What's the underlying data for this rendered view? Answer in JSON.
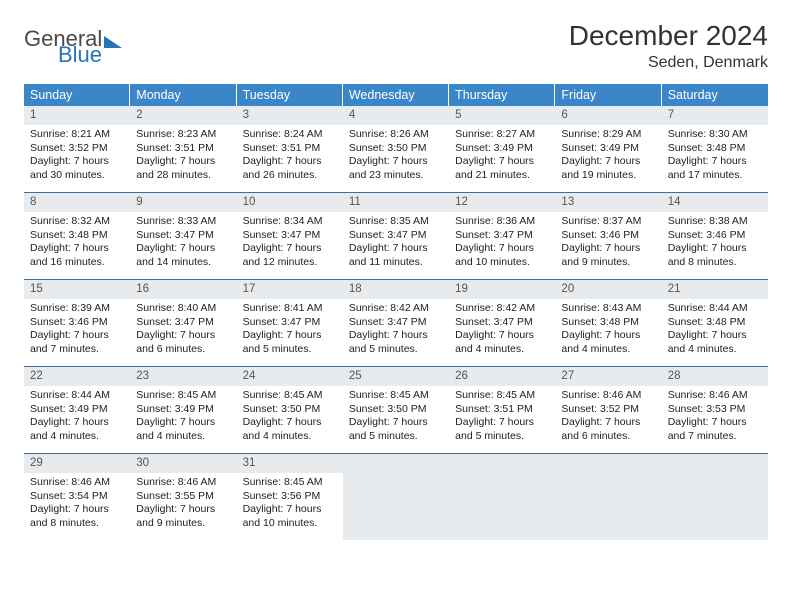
{
  "logo": {
    "general": "General",
    "blue": "Blue"
  },
  "title": "December 2024",
  "subtitle": "Seden, Denmark",
  "colors": {
    "header_bg": "#3a86c8",
    "header_text": "#ffffff",
    "daynum_bg": "#e8ebed",
    "week_border": "#3a6fa0",
    "logo_blue": "#2775b8"
  },
  "day_headers": [
    "Sunday",
    "Monday",
    "Tuesday",
    "Wednesday",
    "Thursday",
    "Friday",
    "Saturday"
  ],
  "weeks": [
    [
      {
        "n": "1",
        "sr": "Sunrise: 8:21 AM",
        "ss": "Sunset: 3:52 PM",
        "dl1": "Daylight: 7 hours",
        "dl2": "and 30 minutes."
      },
      {
        "n": "2",
        "sr": "Sunrise: 8:23 AM",
        "ss": "Sunset: 3:51 PM",
        "dl1": "Daylight: 7 hours",
        "dl2": "and 28 minutes."
      },
      {
        "n": "3",
        "sr": "Sunrise: 8:24 AM",
        "ss": "Sunset: 3:51 PM",
        "dl1": "Daylight: 7 hours",
        "dl2": "and 26 minutes."
      },
      {
        "n": "4",
        "sr": "Sunrise: 8:26 AM",
        "ss": "Sunset: 3:50 PM",
        "dl1": "Daylight: 7 hours",
        "dl2": "and 23 minutes."
      },
      {
        "n": "5",
        "sr": "Sunrise: 8:27 AM",
        "ss": "Sunset: 3:49 PM",
        "dl1": "Daylight: 7 hours",
        "dl2": "and 21 minutes."
      },
      {
        "n": "6",
        "sr": "Sunrise: 8:29 AM",
        "ss": "Sunset: 3:49 PM",
        "dl1": "Daylight: 7 hours",
        "dl2": "and 19 minutes."
      },
      {
        "n": "7",
        "sr": "Sunrise: 8:30 AM",
        "ss": "Sunset: 3:48 PM",
        "dl1": "Daylight: 7 hours",
        "dl2": "and 17 minutes."
      }
    ],
    [
      {
        "n": "8",
        "sr": "Sunrise: 8:32 AM",
        "ss": "Sunset: 3:48 PM",
        "dl1": "Daylight: 7 hours",
        "dl2": "and 16 minutes."
      },
      {
        "n": "9",
        "sr": "Sunrise: 8:33 AM",
        "ss": "Sunset: 3:47 PM",
        "dl1": "Daylight: 7 hours",
        "dl2": "and 14 minutes."
      },
      {
        "n": "10",
        "sr": "Sunrise: 8:34 AM",
        "ss": "Sunset: 3:47 PM",
        "dl1": "Daylight: 7 hours",
        "dl2": "and 12 minutes."
      },
      {
        "n": "11",
        "sr": "Sunrise: 8:35 AM",
        "ss": "Sunset: 3:47 PM",
        "dl1": "Daylight: 7 hours",
        "dl2": "and 11 minutes."
      },
      {
        "n": "12",
        "sr": "Sunrise: 8:36 AM",
        "ss": "Sunset: 3:47 PM",
        "dl1": "Daylight: 7 hours",
        "dl2": "and 10 minutes."
      },
      {
        "n": "13",
        "sr": "Sunrise: 8:37 AM",
        "ss": "Sunset: 3:46 PM",
        "dl1": "Daylight: 7 hours",
        "dl2": "and 9 minutes."
      },
      {
        "n": "14",
        "sr": "Sunrise: 8:38 AM",
        "ss": "Sunset: 3:46 PM",
        "dl1": "Daylight: 7 hours",
        "dl2": "and 8 minutes."
      }
    ],
    [
      {
        "n": "15",
        "sr": "Sunrise: 8:39 AM",
        "ss": "Sunset: 3:46 PM",
        "dl1": "Daylight: 7 hours",
        "dl2": "and 7 minutes."
      },
      {
        "n": "16",
        "sr": "Sunrise: 8:40 AM",
        "ss": "Sunset: 3:47 PM",
        "dl1": "Daylight: 7 hours",
        "dl2": "and 6 minutes."
      },
      {
        "n": "17",
        "sr": "Sunrise: 8:41 AM",
        "ss": "Sunset: 3:47 PM",
        "dl1": "Daylight: 7 hours",
        "dl2": "and 5 minutes."
      },
      {
        "n": "18",
        "sr": "Sunrise: 8:42 AM",
        "ss": "Sunset: 3:47 PM",
        "dl1": "Daylight: 7 hours",
        "dl2": "and 5 minutes."
      },
      {
        "n": "19",
        "sr": "Sunrise: 8:42 AM",
        "ss": "Sunset: 3:47 PM",
        "dl1": "Daylight: 7 hours",
        "dl2": "and 4 minutes."
      },
      {
        "n": "20",
        "sr": "Sunrise: 8:43 AM",
        "ss": "Sunset: 3:48 PM",
        "dl1": "Daylight: 7 hours",
        "dl2": "and 4 minutes."
      },
      {
        "n": "21",
        "sr": "Sunrise: 8:44 AM",
        "ss": "Sunset: 3:48 PM",
        "dl1": "Daylight: 7 hours",
        "dl2": "and 4 minutes."
      }
    ],
    [
      {
        "n": "22",
        "sr": "Sunrise: 8:44 AM",
        "ss": "Sunset: 3:49 PM",
        "dl1": "Daylight: 7 hours",
        "dl2": "and 4 minutes."
      },
      {
        "n": "23",
        "sr": "Sunrise: 8:45 AM",
        "ss": "Sunset: 3:49 PM",
        "dl1": "Daylight: 7 hours",
        "dl2": "and 4 minutes."
      },
      {
        "n": "24",
        "sr": "Sunrise: 8:45 AM",
        "ss": "Sunset: 3:50 PM",
        "dl1": "Daylight: 7 hours",
        "dl2": "and 4 minutes."
      },
      {
        "n": "25",
        "sr": "Sunrise: 8:45 AM",
        "ss": "Sunset: 3:50 PM",
        "dl1": "Daylight: 7 hours",
        "dl2": "and 5 minutes."
      },
      {
        "n": "26",
        "sr": "Sunrise: 8:45 AM",
        "ss": "Sunset: 3:51 PM",
        "dl1": "Daylight: 7 hours",
        "dl2": "and 5 minutes."
      },
      {
        "n": "27",
        "sr": "Sunrise: 8:46 AM",
        "ss": "Sunset: 3:52 PM",
        "dl1": "Daylight: 7 hours",
        "dl2": "and 6 minutes."
      },
      {
        "n": "28",
        "sr": "Sunrise: 8:46 AM",
        "ss": "Sunset: 3:53 PM",
        "dl1": "Daylight: 7 hours",
        "dl2": "and 7 minutes."
      }
    ],
    [
      {
        "n": "29",
        "sr": "Sunrise: 8:46 AM",
        "ss": "Sunset: 3:54 PM",
        "dl1": "Daylight: 7 hours",
        "dl2": "and 8 minutes."
      },
      {
        "n": "30",
        "sr": "Sunrise: 8:46 AM",
        "ss": "Sunset: 3:55 PM",
        "dl1": "Daylight: 7 hours",
        "dl2": "and 9 minutes."
      },
      {
        "n": "31",
        "sr": "Sunrise: 8:45 AM",
        "ss": "Sunset: 3:56 PM",
        "dl1": "Daylight: 7 hours",
        "dl2": "and 10 minutes."
      },
      {
        "empty": true
      },
      {
        "empty": true
      },
      {
        "empty": true
      },
      {
        "empty": true
      }
    ]
  ]
}
